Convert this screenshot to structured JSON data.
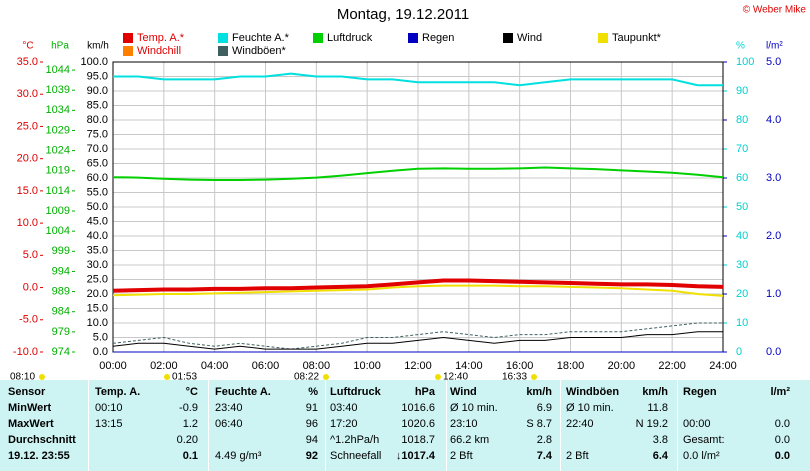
{
  "chart_data": {
    "type": "line",
    "title": "Montag, 19.12.2011",
    "credit": "© Weber Mike",
    "xlim": [
      0,
      24
    ],
    "xticks": [
      {
        "value": 0,
        "label": "00:00"
      },
      {
        "value": 2,
        "label": "02:00"
      },
      {
        "value": 4,
        "label": "04:00"
      },
      {
        "value": 6,
        "label": "06:00"
      },
      {
        "value": 8,
        "label": "08:00"
      },
      {
        "value": 10,
        "label": "10:00"
      },
      {
        "value": 12,
        "label": "12:00"
      },
      {
        "value": 14,
        "label": "14:00"
      },
      {
        "value": 16,
        "label": "16:00"
      },
      {
        "value": 18,
        "label": "18:00"
      },
      {
        "value": 20,
        "label": "20:00"
      },
      {
        "value": 22,
        "label": "22:00"
      },
      {
        "value": 24,
        "label": "24:00"
      }
    ],
    "x": [
      0,
      1,
      2,
      3,
      4,
      5,
      6,
      7,
      8,
      9,
      10,
      11,
      12,
      13,
      14,
      15,
      16,
      17,
      18,
      19,
      20,
      21,
      22,
      23,
      24
    ],
    "y_axes": [
      {
        "unit": "°C",
        "color": "#e00000",
        "side": "left",
        "lim": [
          -10,
          35
        ],
        "ticks": [
          {
            "value": -10,
            "label": "-10.0"
          },
          {
            "value": -5,
            "label": "-5.0"
          },
          {
            "value": 0,
            "label": "0.0"
          },
          {
            "value": 5,
            "label": "5.0"
          },
          {
            "value": 10,
            "label": "10.0"
          },
          {
            "value": 15,
            "label": "15.0"
          },
          {
            "value": 20,
            "label": "20.0"
          },
          {
            "value": 25,
            "label": "25.0"
          },
          {
            "value": 30,
            "label": "30.0"
          },
          {
            "value": 35,
            "label": "35.0"
          }
        ]
      },
      {
        "unit": "hPa",
        "color": "#00b000",
        "side": "left",
        "lim": [
          974,
          1046
        ],
        "ticks": [
          974,
          979,
          984,
          989,
          994,
          999,
          1004,
          1009,
          1014,
          1019,
          1024,
          1029,
          1034,
          1039,
          1044
        ]
      },
      {
        "unit": "km/h",
        "color": "#000000",
        "side": "left",
        "grid": true,
        "lim": [
          0,
          100
        ],
        "ticks": [
          {
            "value": 0,
            "label": "0.0"
          },
          {
            "value": 5,
            "label": "5.0"
          },
          {
            "value": 10,
            "label": "10.0"
          },
          {
            "value": 15,
            "label": "15.0"
          },
          {
            "value": 20,
            "label": "20.0"
          },
          {
            "value": 25,
            "label": "25.0"
          },
          {
            "value": 30,
            "label": "30.0"
          },
          {
            "value": 35,
            "label": "35.0"
          },
          {
            "value": 40,
            "label": "40.0"
          },
          {
            "value": 45,
            "label": "45.0"
          },
          {
            "value": 50,
            "label": "50.0"
          },
          {
            "value": 55,
            "label": "55.0"
          },
          {
            "value": 60,
            "label": "60.0"
          },
          {
            "value": 65,
            "label": "65.0"
          },
          {
            "value": 70,
            "label": "70.0"
          },
          {
            "value": 75,
            "label": "75.0"
          },
          {
            "value": 80,
            "label": "80.0"
          },
          {
            "value": 85,
            "label": "85.0"
          },
          {
            "value": 90,
            "label": "90.0"
          },
          {
            "value": 95,
            "label": "95.0"
          },
          {
            "value": 100,
            "label": "100.0"
          }
        ]
      },
      {
        "unit": "%",
        "color": "#00d0d0",
        "side": "right",
        "lim": [
          0,
          100
        ],
        "ticks": [
          0,
          10,
          20,
          30,
          40,
          50,
          60,
          70,
          80,
          90,
          100
        ]
      },
      {
        "unit": "l/m²",
        "color": "#0000c0",
        "side": "right",
        "lim": [
          0,
          5
        ],
        "ticks": [
          {
            "value": 0,
            "label": "0.0"
          },
          {
            "value": 1,
            "label": "1.0"
          },
          {
            "value": 2,
            "label": "2.0"
          },
          {
            "value": 3,
            "label": "3.0"
          },
          {
            "value": 4,
            "label": "4.0"
          },
          {
            "value": 5,
            "label": "5.0"
          }
        ]
      }
    ],
    "series": [
      {
        "name": "Temp. A.*",
        "color": "#e00000",
        "axis": 0,
        "width": 4,
        "values": [
          -0.5,
          -0.4,
          -0.3,
          -0.3,
          -0.2,
          -0.2,
          -0.1,
          -0.1,
          0.0,
          0.1,
          0.2,
          0.5,
          0.8,
          1.1,
          1.1,
          1.0,
          0.9,
          0.8,
          0.7,
          0.6,
          0.5,
          0.5,
          0.4,
          0.2,
          0.1
        ]
      },
      {
        "name": "Feuchte A.*",
        "color": "#00e0e0",
        "axis": 3,
        "width": 2,
        "values": [
          95,
          95,
          94,
          94,
          94,
          95,
          95,
          96,
          95,
          95,
          94,
          94,
          93,
          93,
          93,
          93,
          92,
          93,
          94,
          94,
          94,
          94,
          94,
          92,
          92
        ]
      },
      {
        "name": "Luftdruck",
        "color": "#00d000",
        "axis": 1,
        "width": 2,
        "values": [
          1017.4,
          1017.3,
          1017.0,
          1016.8,
          1016.7,
          1016.7,
          1016.8,
          1017.0,
          1017.3,
          1017.8,
          1018.4,
          1019.0,
          1019.5,
          1019.6,
          1019.5,
          1019.5,
          1019.6,
          1019.8,
          1019.6,
          1019.4,
          1019.1,
          1018.8,
          1018.5,
          1018.0,
          1017.4
        ]
      },
      {
        "name": "Regen",
        "color": "#0000c0",
        "axis": 4,
        "width": 1,
        "values": [
          0,
          0,
          0,
          0,
          0,
          0,
          0,
          0,
          0,
          0,
          0,
          0,
          0,
          0,
          0,
          0,
          0,
          0,
          0,
          0,
          0,
          0,
          0,
          0,
          0
        ]
      },
      {
        "name": "Wind",
        "color": "#000000",
        "axis": 2,
        "width": 1,
        "values": [
          2,
          3,
          3,
          2,
          1,
          2,
          1,
          1,
          1,
          2,
          3,
          3,
          4,
          5,
          4,
          3,
          4,
          4,
          5,
          5,
          5,
          6,
          6,
          7,
          7
        ]
      },
      {
        "name": "Taupunkt*",
        "color": "#f0e000",
        "axis": 0,
        "width": 2,
        "values": [
          -1.2,
          -1.1,
          -1.0,
          -1.0,
          -0.9,
          -0.8,
          -0.7,
          -0.6,
          -0.5,
          -0.4,
          -0.3,
          0.0,
          0.2,
          0.3,
          0.3,
          0.3,
          0.2,
          0.2,
          0.1,
          0.0,
          -0.1,
          -0.3,
          -0.5,
          -1.0,
          -1.3
        ]
      },
      {
        "name": "Windchill",
        "color": "#ff8000",
        "axis": 0,
        "width": 1,
        "values": [
          -0.6,
          -0.5,
          -0.4,
          -0.4,
          -0.3,
          -0.3,
          -0.2,
          -0.2,
          -0.1,
          0.0,
          0.1,
          0.4,
          0.7,
          1.0,
          1.0,
          0.9,
          0.8,
          0.7,
          0.6,
          0.5,
          0.4,
          0.4,
          0.3,
          0.1,
          0.0
        ]
      },
      {
        "name": "Windböen*",
        "color": "#406060",
        "axis": 2,
        "width": 1,
        "values": [
          3,
          4,
          5,
          3,
          2,
          3,
          2,
          1,
          2,
          3,
          5,
          5,
          6,
          7,
          6,
          5,
          6,
          6,
          7,
          7,
          7,
          8,
          9,
          10,
          10
        ]
      }
    ],
    "annotations": [
      "08:10",
      "01:53",
      "08:22",
      "12:40",
      "16:33"
    ]
  },
  "table": {
    "header": [
      "Sensor",
      "Temp. A.",
      "°C",
      "Feuchte A.",
      "%",
      "Luftdruck",
      "hPa",
      "Wind",
      "km/h",
      "Windböen",
      "km/h",
      "Regen",
      "l/m²"
    ],
    "rows": [
      [
        "MinWert",
        "00:10",
        "-0.9",
        "23:40",
        "91",
        "03:40",
        "1016.6",
        "Ø 10 min.",
        "6.9",
        "Ø 10 min.",
        "11.8",
        null,
        null
      ],
      [
        "MaxWert",
        "13:15",
        "1.2",
        "06:40",
        "96",
        "17:20",
        "1020.6",
        "23:10",
        "S 8.7",
        "22:40",
        "N 19.2",
        "00:00",
        "0.0"
      ],
      [
        "Durchschnitt",
        null,
        "0.20",
        null,
        "94",
        "^1.2hPa/h",
        "1018.7",
        "66.2 km",
        "2.8",
        null,
        "3.8",
        "Gesamt:",
        "0.0"
      ],
      [
        "19.12. 23:55",
        null,
        "0.1",
        "4.49 g/m³",
        "92",
        "Schneefall",
        "↓1017.4",
        "2 Bft",
        "7.4",
        "2 Bft",
        "6.4",
        "0.0 l/m²",
        "0.0"
      ]
    ]
  }
}
